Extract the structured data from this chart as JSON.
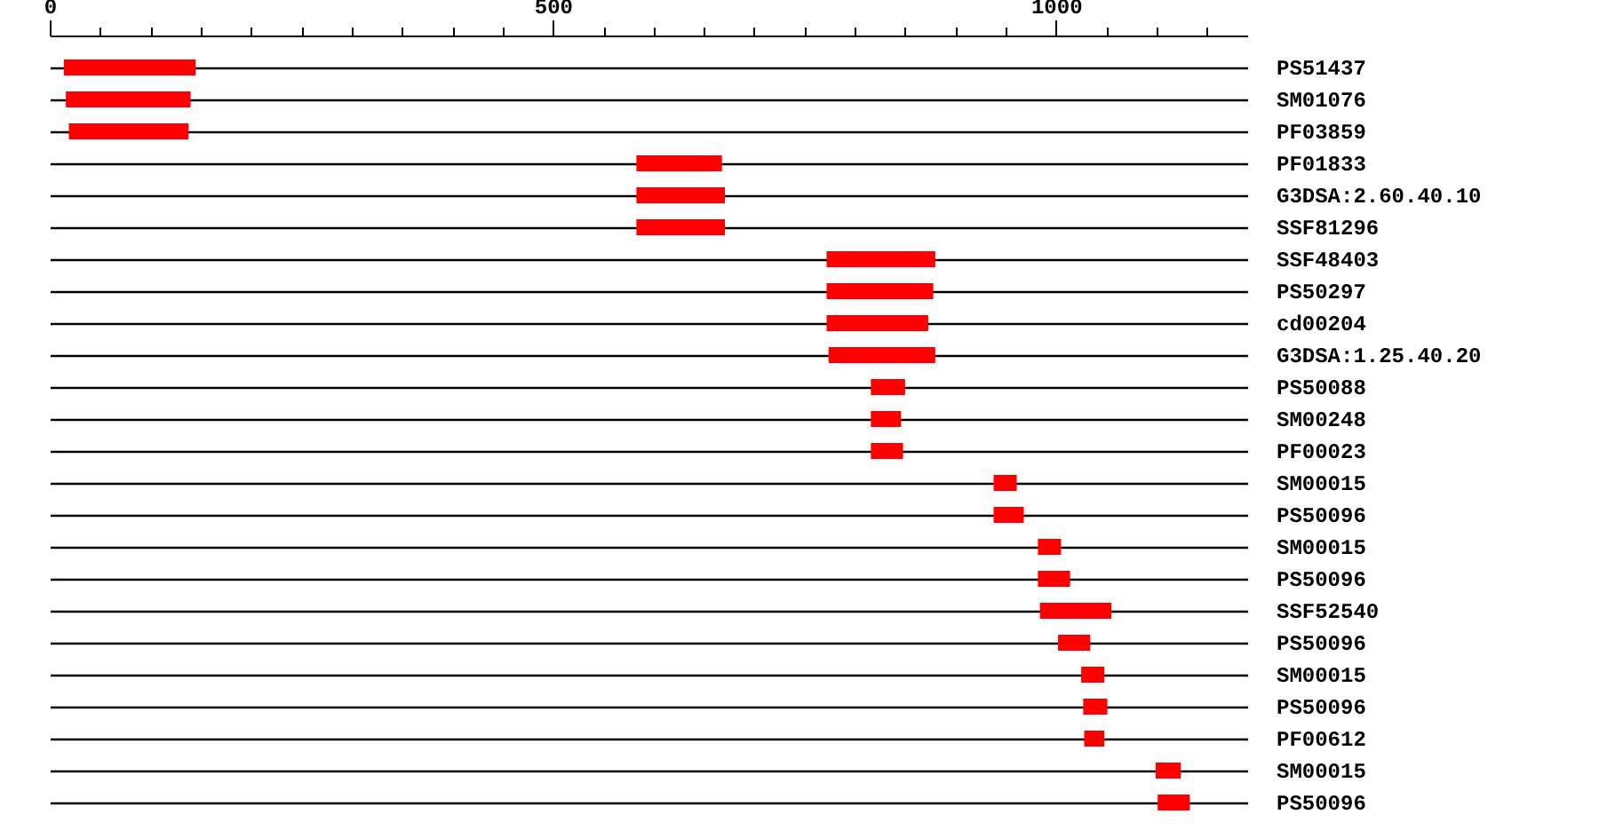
{
  "chart_data": {
    "type": "bar",
    "orientation": "horizontal",
    "categories": [
      "PS51437",
      "SM01076",
      "PF03859",
      "PF01833",
      "G3DSA:2.60.40.10",
      "SSF81296",
      "SSF48403",
      "PS50297",
      "cd00204",
      "G3DSA:1.25.40.20",
      "PS50088",
      "SM00248",
      "PF00023",
      "SM00015",
      "PS50096",
      "SM00015",
      "PS50096",
      "SSF52540",
      "PS50096",
      "SM00015",
      "PS50096",
      "PF00612",
      "SM00015",
      "PS50096"
    ],
    "base": [
      14,
      16,
      19,
      583,
      583,
      583,
      772,
      772,
      772,
      774,
      816,
      816,
      816,
      938,
      938,
      982,
      982,
      984,
      1002,
      1025,
      1027,
      1028,
      1099,
      1101
    ],
    "values": [
      131,
      124,
      119,
      85,
      88,
      88,
      108,
      106,
      101,
      106,
      34,
      30,
      32,
      23,
      30,
      23,
      32,
      71,
      32,
      23,
      24,
      20,
      25,
      32
    ],
    "color": "#ff0000",
    "xlim": [
      0,
      1190
    ],
    "xticks": [
      0,
      {
        "value": 50,
        "label": null
      },
      {
        "value": 100,
        "label": null
      },
      {
        "value": 150,
        "label": null
      },
      {
        "value": 200,
        "label": null
      },
      {
        "value": 250,
        "label": null
      },
      {
        "value": 300,
        "label": null
      },
      {
        "value": 350,
        "label": null
      },
      {
        "value": 400,
        "label": null
      },
      {
        "value": 450,
        "label": null
      },
      500,
      {
        "value": 550,
        "label": null
      },
      {
        "value": 600,
        "label": null
      },
      {
        "value": 650,
        "label": null
      },
      {
        "value": 700,
        "label": null
      },
      {
        "value": 750,
        "label": null
      },
      {
        "value": 800,
        "label": null
      },
      {
        "value": 850,
        "label": null
      },
      {
        "value": 900,
        "label": null
      },
      {
        "value": 950,
        "label": null
      },
      1000,
      {
        "value": 1050,
        "label": null
      },
      {
        "value": 1100,
        "label": null
      },
      {
        "value": 1150,
        "label": null
      }
    ],
    "grid": "y"
  }
}
